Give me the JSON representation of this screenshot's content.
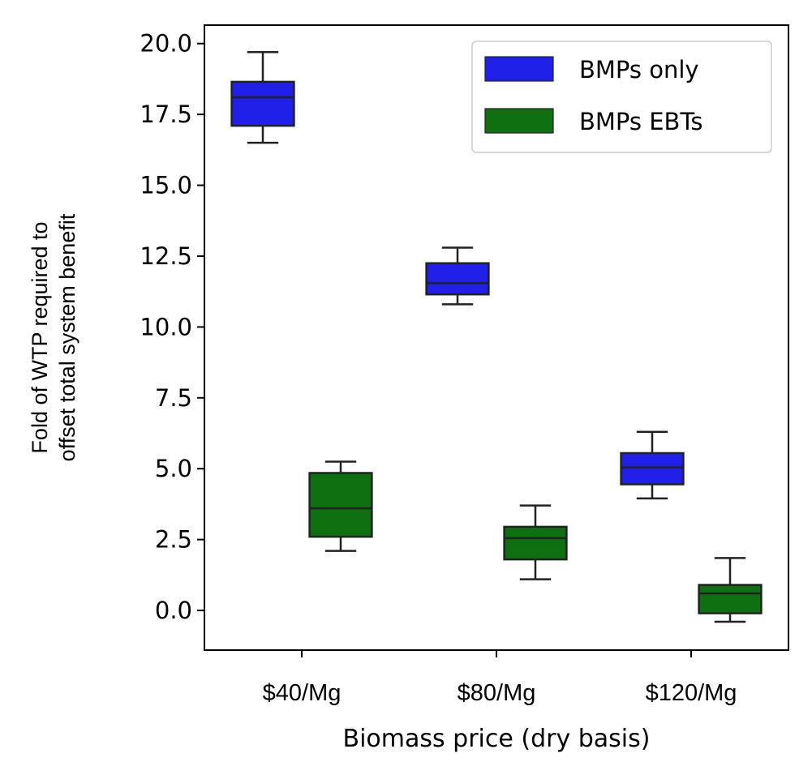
{
  "chart_data": {
    "type": "box",
    "categories": [
      "$40/Mg",
      "$80/Mg",
      "$120/Mg"
    ],
    "xlabel": "Biomass price (dry basis)",
    "ylabel_lines": [
      "Fold of WTP required to",
      "offset total system benefit"
    ],
    "ylim": [
      -1.4,
      20.65
    ],
    "yticks": [
      0.0,
      2.5,
      5.0,
      7.5,
      10.0,
      12.5,
      15.0,
      17.5,
      20.0
    ],
    "ytick_labels": [
      "0.0",
      "2.5",
      "5.0",
      "7.5",
      "10.0",
      "12.5",
      "15.0",
      "17.5",
      "20.0"
    ],
    "grid": false,
    "legend_position": "upper right",
    "series": [
      {
        "name": "BMPs only",
        "color": "#2020e8",
        "boxes": [
          {
            "whisker_low": 16.5,
            "q1": 17.1,
            "median": 18.1,
            "q3": 18.65,
            "whisker_high": 19.7
          },
          {
            "whisker_low": 10.8,
            "q1": 11.15,
            "median": 11.55,
            "q3": 12.25,
            "whisker_high": 12.8
          },
          {
            "whisker_low": 3.95,
            "q1": 4.45,
            "median": 5.05,
            "q3": 5.55,
            "whisker_high": 6.3
          }
        ]
      },
      {
        "name": "BMPs EBTs",
        "color": "#0f7012",
        "boxes": [
          {
            "whisker_low": 2.1,
            "q1": 2.6,
            "median": 3.6,
            "q3": 4.85,
            "whisker_high": 5.25
          },
          {
            "whisker_low": 1.1,
            "q1": 1.8,
            "median": 2.55,
            "q3": 2.95,
            "whisker_high": 3.7
          },
          {
            "whisker_low": -0.4,
            "q1": -0.1,
            "median": 0.6,
            "q3": 0.9,
            "whisker_high": 1.85
          }
        ]
      }
    ]
  }
}
